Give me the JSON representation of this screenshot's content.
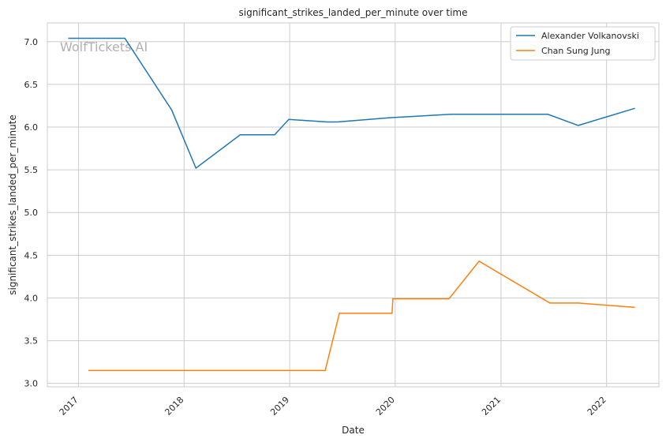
{
  "chart_data": {
    "type": "line",
    "title": "significant_strikes_landed_per_minute over time",
    "xlabel": "Date",
    "ylabel": "significant_strikes_landed_per_minute",
    "watermark": "WolfTickets.AI",
    "xlim": [
      "2016-09-15",
      "2022-07-01"
    ],
    "ylim": [
      2.96,
      7.22
    ],
    "x_ticks": [
      "2017",
      "2018",
      "2019",
      "2020",
      "2021",
      "2022"
    ],
    "y_ticks": [
      "3.0",
      "3.5",
      "4.0",
      "4.5",
      "5.0",
      "5.5",
      "6.0",
      "6.5",
      "7.0"
    ],
    "grid": true,
    "legend_position": "top-right",
    "series": [
      {
        "name": "Alexander Volkanovski",
        "color": "#1f77b4",
        "points": [
          [
            "2016-11-26",
            7.04
          ],
          [
            "2017-06-10",
            7.04
          ],
          [
            "2017-11-19",
            6.2
          ],
          [
            "2018-02-11",
            5.52
          ],
          [
            "2018-07-14",
            5.91
          ],
          [
            "2018-11-10",
            5.91
          ],
          [
            "2018-12-29",
            6.09
          ],
          [
            "2019-05-11",
            6.06
          ],
          [
            "2019-06-15",
            6.06
          ],
          [
            "2019-12-14",
            6.11
          ],
          [
            "2020-07-12",
            6.15
          ],
          [
            "2021-06-12",
            6.15
          ],
          [
            "2021-09-25",
            6.02
          ],
          [
            "2022-04-09",
            6.22
          ]
        ]
      },
      {
        "name": "Chan Sung Jung",
        "color": "#ff7f0e",
        "points": [
          [
            "2017-02-04",
            3.15
          ],
          [
            "2019-05-04",
            3.15
          ],
          [
            "2019-06-22",
            3.82
          ],
          [
            "2019-12-21",
            3.82
          ],
          [
            "2019-12-24",
            3.99
          ],
          [
            "2020-07-05",
            3.99
          ],
          [
            "2020-10-17",
            4.43
          ],
          [
            "2021-06-19",
            3.94
          ],
          [
            "2021-09-25",
            3.94
          ],
          [
            "2022-04-09",
            3.89
          ]
        ]
      }
    ]
  }
}
